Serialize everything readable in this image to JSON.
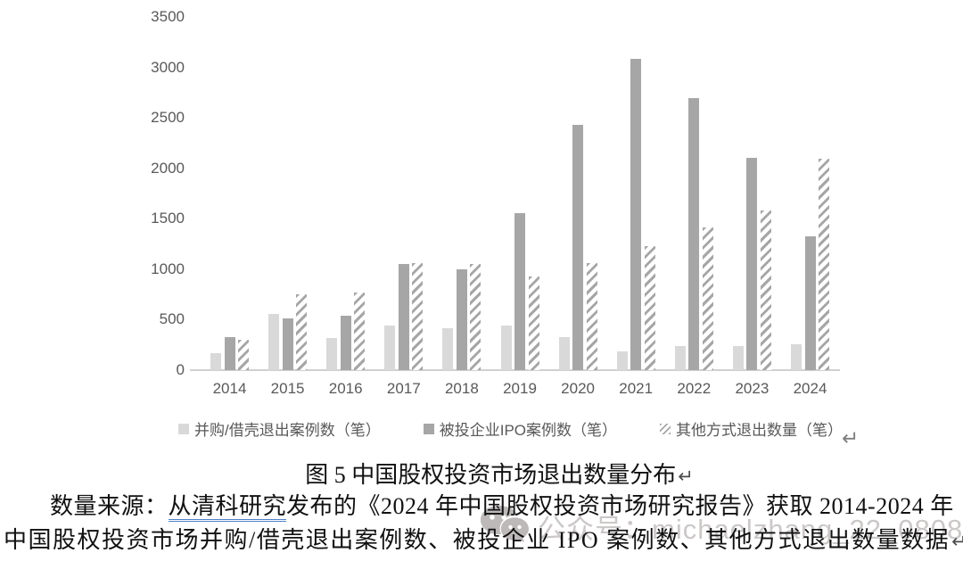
{
  "chart_data": {
    "type": "bar",
    "title": "",
    "categories": [
      "2014",
      "2015",
      "2016",
      "2017",
      "2018",
      "2019",
      "2020",
      "2021",
      "2022",
      "2023",
      "2024"
    ],
    "series": [
      {
        "name": "并购/借壳退出案例数（笔）",
        "style": "solid",
        "color": "#d9d9d9",
        "values": [
          170,
          560,
          320,
          440,
          420,
          440,
          330,
          190,
          240,
          240,
          260
        ]
      },
      {
        "name": "被投企业IPO案例数（笔）",
        "style": "solid",
        "color": "#a6a6a6",
        "values": [
          330,
          510,
          540,
          1050,
          1000,
          1560,
          2430,
          3090,
          2700,
          2110,
          1330
        ]
      },
      {
        "name": "其他方式退出数量（笔）",
        "style": "hatched",
        "color": "#a6a6a6",
        "values": [
          300,
          750,
          770,
          1060,
          1050,
          930,
          1060,
          1230,
          1420,
          1580,
          2100
        ]
      }
    ],
    "ylim": [
      0,
      3500
    ],
    "ytick_step": 500,
    "grid": false,
    "legend_position": "bottom",
    "xlabel": "",
    "ylabel": ""
  },
  "paragraph_mark": "↵",
  "caption": {
    "text": "图 5 中国股权投资市场退出数量分布",
    "return_mark": "↵"
  },
  "source": {
    "line1_prefix": "数量来源：",
    "line1_underlined": "从清科研究",
    "line1_suffix": "发布的《2024 年中国股权投资市场研究报告》获取 2014-2024 年",
    "line2": "中国股权投资市场并购/借壳退出案例数、被投企业 IPO 案例数、其他方式退出数量数据",
    "return_mark": "↵"
  },
  "watermark": {
    "icon": "wechat-icon",
    "text": "公众号：michaelzhang_22_0808"
  },
  "colors": {
    "bar_light": "#d9d9d9",
    "bar_dark": "#a6a6a6",
    "axis_line": "#d2d0ce",
    "tick_text": "#595959",
    "grammar_underline_blue": "#4f81c7",
    "watermark_gray": "#ccc8c8"
  }
}
